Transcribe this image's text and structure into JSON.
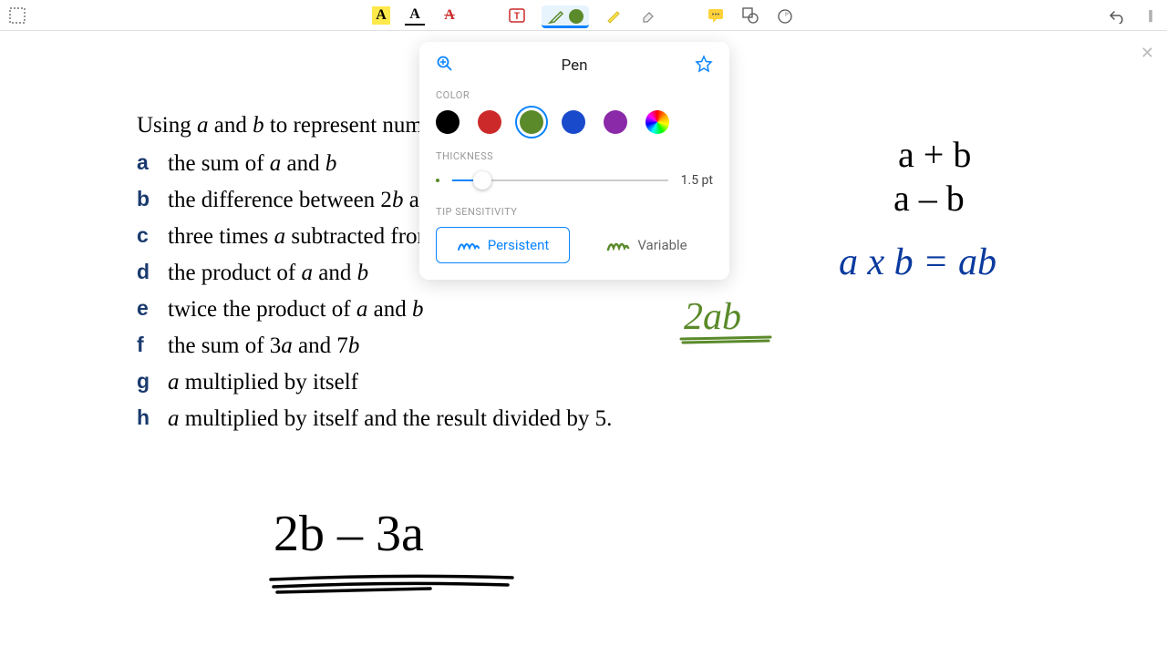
{
  "toolbar": {
    "highlight_a_bg": "#ffe94a",
    "text_color_a": "#000000",
    "strike_a": "#cc2a2a",
    "pen_color": "#5a8a2a",
    "highlighter_color": "#ffe94a",
    "comment_color": "#ffd23a"
  },
  "popup": {
    "title": "Pen",
    "color_label": "COLOR",
    "thickness_label": "THICKNESS",
    "tip_label": "TIP SENSITIVITY",
    "colors": [
      "#000000",
      "#cc2a2a",
      "#5a8a2a",
      "#1a4acc",
      "#8a2aa8"
    ],
    "selected_color_index": 2,
    "thickness_value": "1.5 pt",
    "thickness_pct": 14,
    "persistent_label": "Persistent",
    "variable_label": "Variable",
    "tip_selected": "persistent"
  },
  "question": {
    "intro_pre": "Using ",
    "intro_a": "a",
    "intro_mid": " and ",
    "intro_b": "b",
    "intro_post": " to represent numbers, write expressions for:",
    "items": [
      {
        "letter": "a",
        "html": "the sum of <em>a</em> and <em>b</em>"
      },
      {
        "letter": "b",
        "html": "the difference between 2<em>b</em> and 3<em>a</em>"
      },
      {
        "letter": "c",
        "html": "three times <em>a</em> subtracted from <em>b</em>"
      },
      {
        "letter": "d",
        "html": "the product of <em>a</em> and <em>b</em>"
      },
      {
        "letter": "e",
        "html": "twice the product of <em>a</em> and <em>b</em>"
      },
      {
        "letter": "f",
        "html": "the sum of 3<em>a</em> and 7<em>b</em>"
      },
      {
        "letter": "g",
        "html": "<em>a</em> multiplied by itself"
      },
      {
        "letter": "h",
        "html": "<em>a</em> multiplied by itself and the result divided by 5."
      }
    ]
  },
  "handwriting": {
    "a_plus_b": "a + b",
    "a_minus_b": "a – b",
    "axb_eq_ab": "a x b   =   ab",
    "two_ab": "2ab",
    "two_b_minus_3a": "2b – 3a"
  },
  "colors": {
    "hw_black": "#000000",
    "hw_blue": "#0a3a9e",
    "hw_green": "#5a8a2a"
  }
}
